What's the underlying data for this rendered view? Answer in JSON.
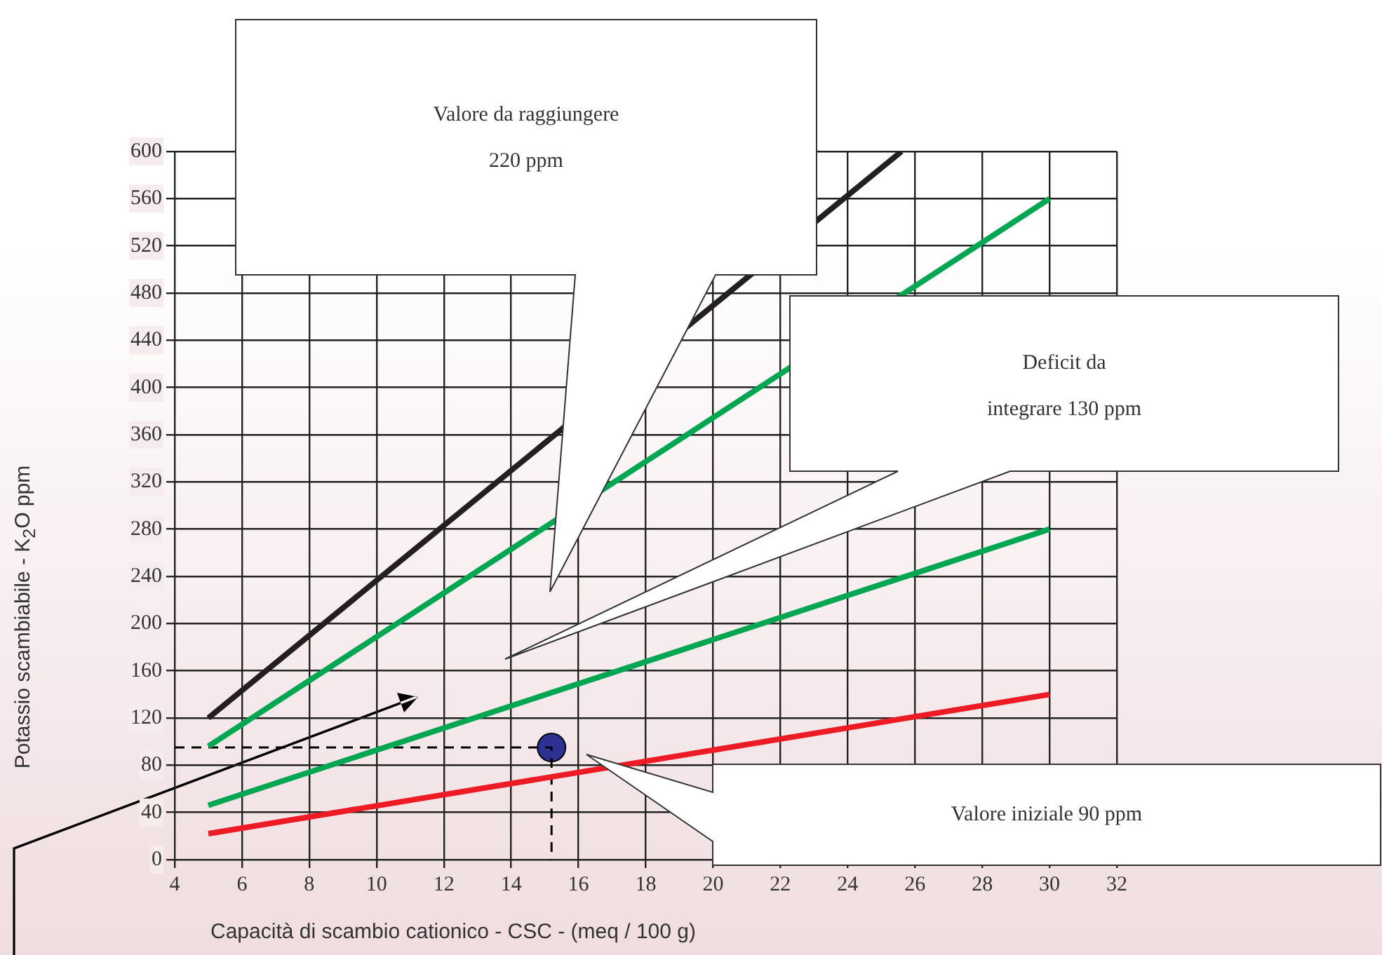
{
  "chart_data": {
    "type": "line",
    "xlabel": "Capacità di scambio cationico - CSC - (meq / 100 g)",
    "ylabel": "Potassio scambiabile - K$_{2}$O ppm",
    "xlim": [
      4,
      32
    ],
    "xticks": [
      4,
      6,
      8,
      10,
      12,
      14,
      16,
      18,
      20,
      22,
      24,
      26,
      28,
      30,
      32
    ],
    "ylim": [
      0,
      600
    ],
    "yticks": [
      0,
      40,
      80,
      120,
      160,
      200,
      240,
      280,
      320,
      360,
      400,
      440,
      480,
      520,
      560,
      600
    ],
    "grid": true,
    "legend": false,
    "marker": "none",
    "line_style": "solid",
    "series": [
      {
        "color": "#231f20",
        "x": [
          5,
          25.6
        ],
        "values": [
          120,
          600
        ]
      },
      {
        "color": "#00a651",
        "x": [
          5,
          30
        ],
        "values": [
          96,
          560
        ]
      },
      {
        "color": "#00a651",
        "x": [
          5,
          30
        ],
        "values": [
          46,
          280
        ]
      },
      {
        "color": "#ed1c24",
        "x": [
          5,
          30
        ],
        "values": [
          22,
          140
        ]
      },
      {
        "type": "line",
        "line_style": "dashed",
        "color": "#000000",
        "x": [
          4,
          15.2,
          15.2
        ],
        "values": [
          95,
          95,
          0
        ]
      },
      {
        "type": "scatter",
        "marker": "circle",
        "color": "#2e3192",
        "x": [
          15.2
        ],
        "values": [
          95
        ]
      }
    ],
    "annotations": [
      "Valore da raggiungere\n220 ppm",
      "Deficit da\nintegrare 130 ppm",
      "Valore iniziale 90 ppm"
    ]
  }
}
